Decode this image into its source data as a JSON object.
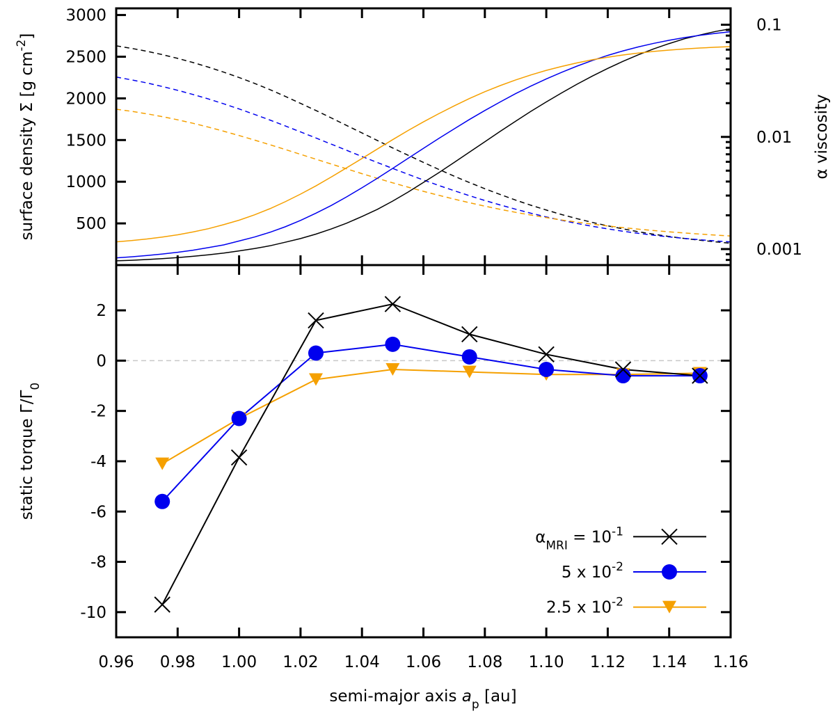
{
  "chart_data": [
    {
      "panel": "top",
      "type": "line",
      "x": [
        0.96,
        0.965,
        0.97,
        0.975,
        0.98,
        0.985,
        0.99,
        0.995,
        1.0,
        1.005,
        1.01,
        1.015,
        1.02,
        1.025,
        1.03,
        1.035,
        1.04,
        1.045,
        1.05,
        1.055,
        1.06,
        1.065,
        1.07,
        1.075,
        1.08,
        1.085,
        1.09,
        1.095,
        1.1,
        1.105,
        1.11,
        1.115,
        1.12,
        1.125,
        1.13,
        1.135,
        1.14,
        1.145,
        1.15,
        1.155,
        1.16
      ],
      "ylabel_left": "surface density Σ [g cm",
      "ylabel_left_sup": "-2",
      "ylabel_left_end": "]",
      "ylabel_right": "α viscosity",
      "yticks_left": [
        500,
        1000,
        1500,
        2000,
        2500,
        3000
      ],
      "yticks_left_labels": [
        "500",
        "1000",
        "1500",
        "2000",
        "2500",
        "3000"
      ],
      "yticks_right": [
        0.001,
        0.01,
        0.1
      ],
      "yticks_right_labels": [
        "0.001",
        "0.01",
        "0.1"
      ],
      "ylim_left": [
        0,
        3080
      ],
      "ylim_right": [
        0.00072,
        0.14
      ],
      "sigma_series": [
        {
          "name": "Σ, α_MRI = 10^-1",
          "color": "#000000",
          "style": "dashed",
          "values": [
            2630,
            2600,
            2565,
            2525,
            2480,
            2430,
            2375,
            2315,
            2250,
            2180,
            2105,
            2025,
            1940,
            1855,
            1765,
            1675,
            1585,
            1495,
            1405,
            1318,
            1232,
            1148,
            1067,
            990,
            916,
            846,
            780,
            718,
            660,
            606,
            557,
            512,
            471,
            434,
            400,
            370,
            343,
            319,
            298,
            279,
            262
          ]
        },
        {
          "name": "Σ, α_MRI = 5 x 10^-2",
          "color": "#0000ee",
          "style": "dashed",
          "values": [
            2255,
            2222,
            2185,
            2143,
            2097,
            2047,
            1993,
            1935,
            1873,
            1808,
            1740,
            1670,
            1598,
            1525,
            1451,
            1377,
            1303,
            1230,
            1159,
            1089,
            1021,
            955,
            892,
            832,
            775,
            721,
            670,
            622,
            578,
            537,
            499,
            465,
            434,
            406,
            381,
            358,
            338,
            320,
            304,
            290,
            278
          ]
        },
        {
          "name": "Σ, α_MRI = 2.5 x 10^-2",
          "color": "#f5a000",
          "style": "dashed",
          "values": [
            1870,
            1845,
            1815,
            1781,
            1743,
            1701,
            1655,
            1606,
            1554,
            1500,
            1444,
            1387,
            1329,
            1270,
            1212,
            1154,
            1097,
            1041,
            987,
            935,
            885,
            837,
            791,
            748,
            707,
            669,
            633,
            600,
            569,
            541,
            515,
            491,
            469,
            449,
            431,
            414,
            399,
            385,
            372,
            360,
            349
          ]
        }
      ],
      "alpha_series": [
        {
          "name": "α, α_MRI = 10^-1",
          "color": "#000000",
          "style": "solid",
          "values": [
            0.000785,
            0.000795,
            0.000807,
            0.000822,
            0.00084,
            0.000862,
            0.000889,
            0.000922,
            0.000963,
            0.00101,
            0.00107,
            0.00115,
            0.00124,
            0.00136,
            0.00151,
            0.0017,
            0.00195,
            0.00226,
            0.00268,
            0.00322,
            0.00392,
            0.0048,
            0.00592,
            0.00732,
            0.00906,
            0.0112,
            0.0138,
            0.0169,
            0.0205,
            0.0247,
            0.0295,
            0.0349,
            0.0408,
            0.0472,
            0.054,
            0.061,
            0.068,
            0.075,
            0.081,
            0.087,
            0.092
          ]
        },
        {
          "name": "α, α_MRI = 5 x 10^-2",
          "color": "#0000ee",
          "style": "solid",
          "values": [
            0.000835,
            0.000853,
            0.000875,
            0.000903,
            0.000937,
            0.000978,
            0.00103,
            0.00109,
            0.00118,
            0.00128,
            0.00141,
            0.00158,
            0.0018,
            0.00209,
            0.00245,
            0.00292,
            0.00352,
            0.00428,
            0.00524,
            0.00644,
            0.00791,
            0.00969,
            0.0118,
            0.0143,
            0.0172,
            0.0205,
            0.0243,
            0.0284,
            0.0329,
            0.0377,
            0.0428,
            0.048,
            0.0533,
            0.0585,
            0.0635,
            0.0683,
            0.0727,
            0.0768,
            0.0804,
            0.0837,
            0.0866
          ]
        },
        {
          "name": "α, α_MRI = 2.5 x 10^-2",
          "color": "#f5a000",
          "style": "solid",
          "values": [
            0.00116,
            0.00119,
            0.00123,
            0.00128,
            0.00134,
            0.00142,
            0.00152,
            0.00165,
            0.00181,
            0.00202,
            0.00229,
            0.00264,
            0.00309,
            0.00366,
            0.00439,
            0.0053,
            0.00642,
            0.0078,
            0.00945,
            0.0114,
            0.0136,
            0.0161,
            0.0189,
            0.022,
            0.0253,
            0.0287,
            0.0322,
            0.0357,
            0.0392,
            0.0425,
            0.0457,
            0.0487,
            0.0514,
            0.0538,
            0.0559,
            0.0578,
            0.0594,
            0.0608,
            0.062,
            0.063,
            0.0638
          ]
        }
      ]
    },
    {
      "panel": "bottom",
      "type": "line",
      "xlabel": "semi-major axis a",
      "xlabel_sub": "p",
      "xlabel_unit": " [au]",
      "ylabel": "static torque Γ/Γ",
      "ylabel_sub": "0",
      "xlim": [
        0.96,
        1.16
      ],
      "ylim": [
        -11,
        3.8
      ],
      "xticks": [
        0.96,
        0.98,
        1.0,
        1.02,
        1.04,
        1.06,
        1.08,
        1.1,
        1.12,
        1.14,
        1.16
      ],
      "xtick_labels": [
        "0.96",
        "0.98",
        "1.00",
        "1.02",
        "1.04",
        "1.06",
        "1.08",
        "1.10",
        "1.12",
        "1.14",
        "1.16"
      ],
      "yticks": [
        -10,
        -8,
        -6,
        -4,
        -2,
        0,
        2
      ],
      "ytick_labels": [
        "-10",
        "-8",
        "-6",
        "-4",
        "-2",
        "0",
        "2"
      ],
      "zero_line": 0,
      "x": [
        0.975,
        1.0,
        1.025,
        1.05,
        1.075,
        1.1,
        1.125,
        1.15
      ],
      "series": [
        {
          "name": "α_MRI = 10^-1",
          "color": "#000000",
          "marker": "x",
          "values": [
            -9.7,
            -3.85,
            1.6,
            2.25,
            1.05,
            0.25,
            -0.35,
            -0.6
          ]
        },
        {
          "name": "5 x 10^-2",
          "color": "#0000ee",
          "marker": "circle",
          "values": [
            -5.6,
            -2.3,
            0.3,
            0.65,
            0.15,
            -0.35,
            -0.6,
            -0.6
          ]
        },
        {
          "name": "2.5 x 10^-2",
          "color": "#f5a000",
          "marker": "triangle-down",
          "values": [
            -4.1,
            -2.3,
            -0.75,
            -0.35,
            -0.45,
            -0.55,
            -0.55,
            -0.5
          ]
        }
      ],
      "legend": {
        "position": "bottom-right",
        "entries": [
          {
            "main": "α",
            "sub": "MRI",
            "rest": " = 10",
            "sup": "-1"
          },
          {
            "main": "5 x 10",
            "sub": "",
            "rest": "",
            "sup": "-2"
          },
          {
            "main": "2.5 x 10",
            "sub": "",
            "rest": "",
            "sup": "-2"
          }
        ]
      }
    }
  ]
}
